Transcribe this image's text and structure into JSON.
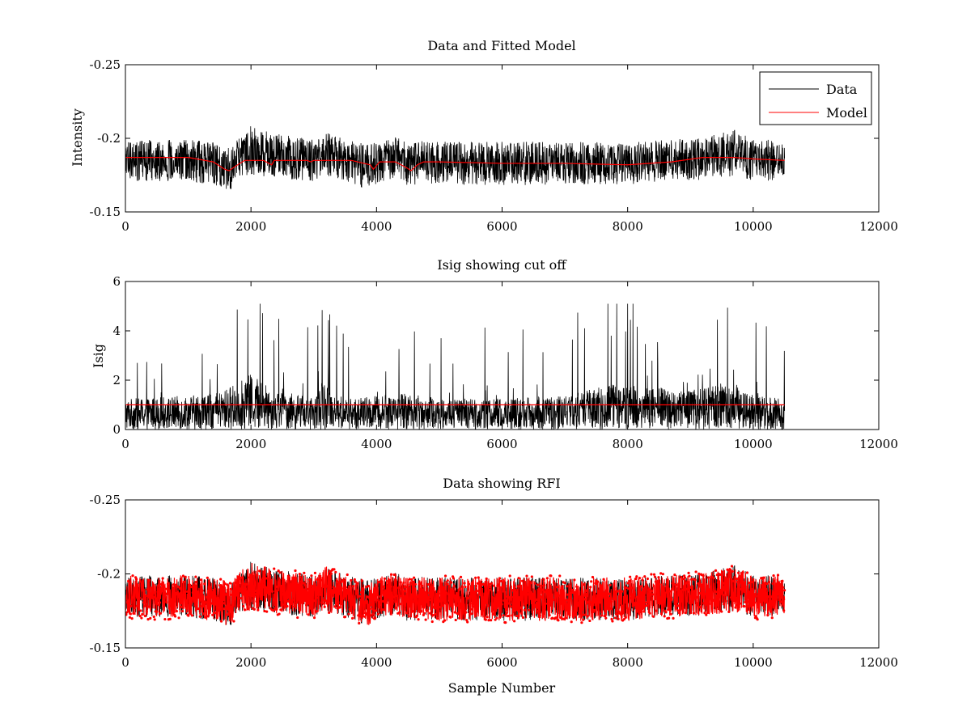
{
  "chart_data": [
    {
      "type": "line",
      "title": "Data and Fitted Model",
      "xlabel": "",
      "ylabel": "Intensity",
      "xlim": [
        0,
        12000
      ],
      "ylim": [
        -0.25,
        -0.15
      ],
      "y_axis_reversed": true,
      "xticks": [
        0,
        2000,
        4000,
        6000,
        8000,
        10000,
        12000
      ],
      "yticks": [
        -0.25,
        -0.2,
        -0.15
      ],
      "ytick_labels": [
        "-0.25",
        "-0.2",
        "-0.15"
      ],
      "legend_position": "top-right",
      "series": [
        {
          "name": "Data",
          "color": "#000000",
          "style": "noisy",
          "x": [
            0,
            1000,
            1500,
            1650,
            1800,
            2000,
            2150,
            2400,
            3000,
            3200,
            3500,
            3900,
            4000,
            4300,
            4500,
            4700,
            5000,
            6000,
            7000,
            8000,
            8600,
            9200,
            9700,
            10000,
            10500
          ],
          "y": [
            -0.185,
            -0.185,
            -0.182,
            -0.18,
            -0.186,
            -0.192,
            -0.19,
            -0.188,
            -0.185,
            -0.19,
            -0.185,
            -0.18,
            -0.184,
            -0.187,
            -0.182,
            -0.184,
            -0.183,
            -0.183,
            -0.183,
            -0.183,
            -0.185,
            -0.186,
            -0.19,
            -0.185,
            -0.185
          ]
        },
        {
          "name": "Model",
          "color": "#ff0000",
          "x": [
            0,
            1000,
            1400,
            1580,
            1650,
            1750,
            1900,
            2200,
            2330,
            2370,
            2450,
            2900,
            2950,
            3000,
            3600,
            3900,
            3950,
            4050,
            4300,
            4480,
            4550,
            4650,
            4750,
            5000,
            6000,
            7000,
            8000,
            8700,
            9200,
            9700,
            10000,
            10500
          ],
          "y": [
            -0.187,
            -0.187,
            -0.184,
            -0.179,
            -0.178,
            -0.181,
            -0.185,
            -0.185,
            -0.182,
            -0.185,
            -0.185,
            -0.185,
            -0.184,
            -0.185,
            -0.185,
            -0.182,
            -0.179,
            -0.184,
            -0.184,
            -0.18,
            -0.178,
            -0.182,
            -0.184,
            -0.184,
            -0.183,
            -0.183,
            -0.182,
            -0.184,
            -0.187,
            -0.187,
            -0.186,
            -0.185
          ]
        }
      ]
    },
    {
      "type": "line",
      "title": "Isig showing cut off",
      "xlabel": "",
      "ylabel": "Isig",
      "xlim": [
        0,
        12000
      ],
      "ylim": [
        0,
        6
      ],
      "xticks": [
        0,
        2000,
        4000,
        6000,
        8000,
        10000,
        12000
      ],
      "yticks": [
        0,
        2,
        4,
        6
      ],
      "ytick_labels": [
        "0",
        "2",
        "4",
        "6"
      ],
      "series": [
        {
          "name": "Isig",
          "color": "#000000",
          "style": "noisy",
          "x": [
            0,
            1000,
            1500,
            2000,
            2100,
            2400,
            3000,
            3150,
            3500,
            4000,
            4500,
            5000,
            6000,
            7000,
            7800,
            8300,
            8800,
            9700,
            10000,
            10500
          ],
          "y": [
            1.0,
            1.1,
            1.2,
            1.8,
            1.7,
            1.3,
            1.0,
            1.6,
            1.0,
            1.1,
            1.2,
            1.0,
            1.0,
            1.1,
            1.5,
            1.4,
            1.3,
            1.5,
            1.1,
            1.0
          ]
        },
        {
          "name": "cut off",
          "color": "#ff0000",
          "x": [
            0,
            10500
          ],
          "y": [
            1,
            1
          ]
        }
      ]
    },
    {
      "type": "line",
      "title": "Data showing RFI",
      "xlabel": "Sample Number",
      "ylabel": "",
      "xlim": [
        0,
        12000
      ],
      "ylim": [
        -0.25,
        -0.15
      ],
      "y_axis_reversed": true,
      "xticks": [
        0,
        2000,
        4000,
        6000,
        8000,
        10000,
        12000
      ],
      "yticks": [
        -0.25,
        -0.2,
        -0.15
      ],
      "ytick_labels": [
        "-0.25",
        "-0.2",
        "-0.15"
      ],
      "series": [
        {
          "name": "Data",
          "color": "#000000",
          "style": "noisy",
          "x": [
            0,
            1000,
            1500,
            1650,
            1800,
            2000,
            2150,
            2400,
            3000,
            3200,
            3500,
            3900,
            4000,
            4300,
            4500,
            4700,
            5000,
            6000,
            7000,
            8000,
            8600,
            9200,
            9700,
            10000,
            10500
          ],
          "y": [
            -0.185,
            -0.185,
            -0.182,
            -0.18,
            -0.186,
            -0.192,
            -0.19,
            -0.188,
            -0.185,
            -0.19,
            -0.185,
            -0.18,
            -0.184,
            -0.187,
            -0.182,
            -0.184,
            -0.183,
            -0.183,
            -0.183,
            -0.183,
            -0.185,
            -0.186,
            -0.19,
            -0.185,
            -0.185
          ]
        },
        {
          "name": "RFI",
          "color": "#ff0000",
          "marker": "dot",
          "style": "noisy",
          "x": [
            0,
            1000,
            1500,
            1650,
            1800,
            2000,
            2150,
            2400,
            3000,
            3200,
            3500,
            3900,
            4000,
            4300,
            4500,
            4700,
            5000,
            6000,
            7000,
            8000,
            8600,
            9200,
            9700,
            10000,
            10500
          ],
          "y": [
            -0.185,
            -0.185,
            -0.182,
            -0.18,
            -0.186,
            -0.192,
            -0.19,
            -0.188,
            -0.185,
            -0.19,
            -0.185,
            -0.18,
            -0.184,
            -0.187,
            -0.182,
            -0.184,
            -0.183,
            -0.183,
            -0.183,
            -0.183,
            -0.185,
            -0.186,
            -0.19,
            -0.185,
            -0.185
          ]
        }
      ]
    }
  ]
}
